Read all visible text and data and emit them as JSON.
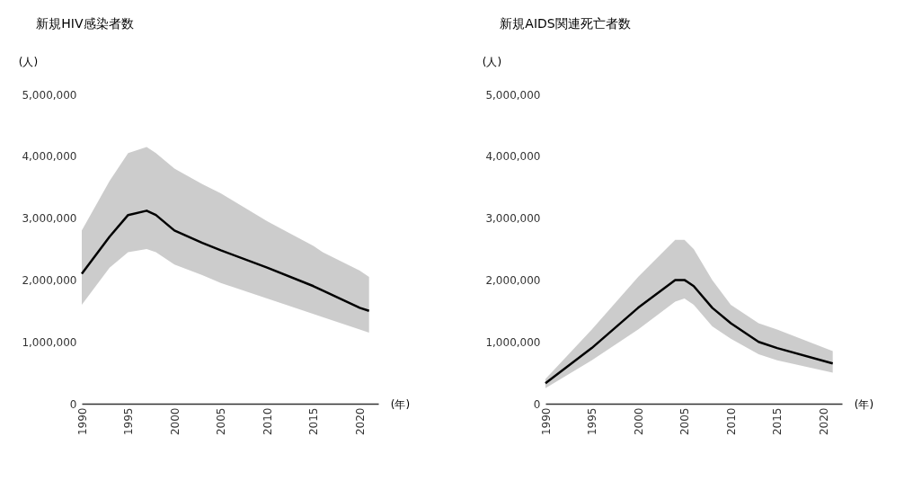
{
  "chart_data": [
    {
      "type": "line",
      "title": "新規HIV感染者数",
      "ylabel": "(人)",
      "xlabel": "(年)",
      "x": [
        1990,
        1993,
        1995,
        1997,
        1998,
        2000,
        2003,
        2005,
        2010,
        2015,
        2016,
        2020,
        2021
      ],
      "series": [
        {
          "color": "#000000",
          "values": [
            2100000,
            2700000,
            3050000,
            3120000,
            3050000,
            2800000,
            2600000,
            2480000,
            2200000,
            1900000,
            1830000,
            1550000,
            1500000
          ],
          "lower": [
            1600000,
            2200000,
            2450000,
            2500000,
            2450000,
            2250000,
            2080000,
            1950000,
            1700000,
            1450000,
            1400000,
            1200000,
            1150000
          ],
          "upper": [
            2800000,
            3600000,
            4050000,
            4150000,
            4050000,
            3800000,
            3550000,
            3400000,
            2950000,
            2550000,
            2450000,
            2150000,
            2050000
          ]
        }
      ],
      "xlim": [
        1990,
        2022
      ],
      "xticks": [
        1990,
        1995,
        2000,
        2005,
        2010,
        2015,
        2020
      ],
      "ylim": [
        0,
        5000000
      ],
      "yticks": [
        0,
        {
          "value": 1000000,
          "label": "1,000,000"
        },
        {
          "value": 2000000,
          "label": "2,000,000"
        },
        {
          "value": 3000000,
          "label": "3,000,000"
        },
        {
          "value": 4000000,
          "label": "4,000,000"
        },
        {
          "value": 5000000,
          "label": "5,000,000"
        }
      ],
      "grid": false,
      "marker": "none",
      "line_style": "solid"
    },
    {
      "type": "line",
      "title": "新規AIDS関連死亡者数",
      "ylabel": "(人)",
      "xlabel": "(年)",
      "x": [
        1990,
        1995,
        2000,
        2004,
        2005,
        2006,
        2008,
        2010,
        2013,
        2015,
        2021
      ],
      "series": [
        {
          "color": "#000000",
          "values": [
            330000,
            900000,
            1550000,
            2000000,
            2000000,
            1900000,
            1550000,
            1300000,
            1000000,
            900000,
            650000
          ],
          "lower": [
            250000,
            700000,
            1200000,
            1650000,
            1700000,
            1600000,
            1250000,
            1050000,
            800000,
            700000,
            500000
          ],
          "upper": [
            400000,
            1200000,
            2050000,
            2650000,
            2650000,
            2500000,
            2000000,
            1600000,
            1300000,
            1200000,
            850000
          ]
        }
      ],
      "xlim": [
        1990,
        2022
      ],
      "xticks": [
        1990,
        1995,
        2000,
        2005,
        2010,
        2015,
        2020
      ],
      "ylim": [
        0,
        5000000
      ],
      "yticks": [
        0,
        {
          "value": 1000000,
          "label": "1,000,000"
        },
        {
          "value": 2000000,
          "label": "2,000,000"
        },
        {
          "value": 3000000,
          "label": "3,000,000"
        },
        {
          "value": 4000000,
          "label": "4,000,000"
        },
        {
          "value": 5000000,
          "label": "5,000,000"
        }
      ],
      "grid": false,
      "marker": "none",
      "line_style": "solid"
    }
  ]
}
